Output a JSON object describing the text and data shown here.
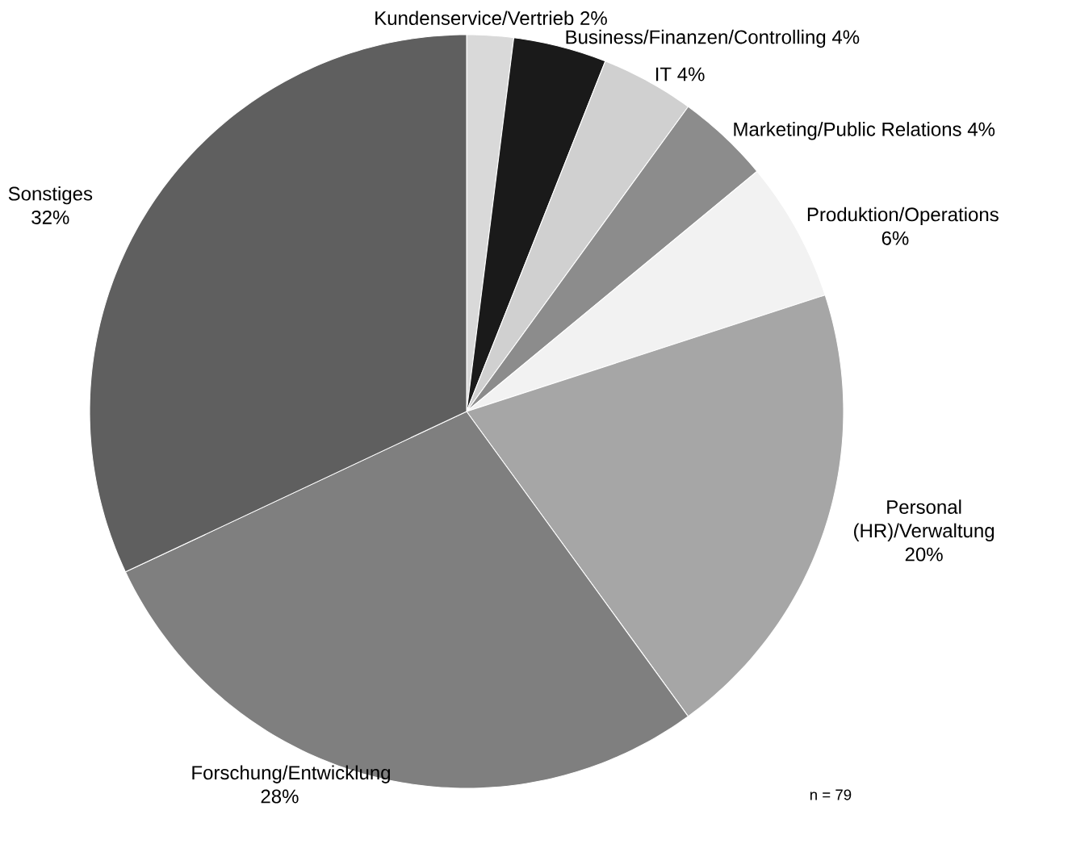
{
  "chart_data": {
    "type": "pie",
    "categories": [
      "Kundenservice/Vertrieb",
      "Business/Finanzen/Controlling",
      "IT",
      "Marketing/Public Relations",
      "Produktion/Operations",
      "Personal (HR)/Verwaltung",
      "Forschung/Entwicklung",
      "Sonstiges"
    ],
    "values": [
      2,
      4,
      4,
      4,
      6,
      20,
      28,
      32
    ],
    "value_labels": [
      "2%",
      "4%",
      "4%",
      "4%",
      "6%",
      "20%",
      "28%",
      "32%"
    ],
    "colors": [
      "#d9d9d9",
      "#1a1a1a",
      "#d0d0d0",
      "#8c8c8c",
      "#f2f2f2",
      "#a6a6a6",
      "#7f7f7f",
      "#5f5f5f"
    ],
    "annotations": [
      "n = 79"
    ]
  }
}
